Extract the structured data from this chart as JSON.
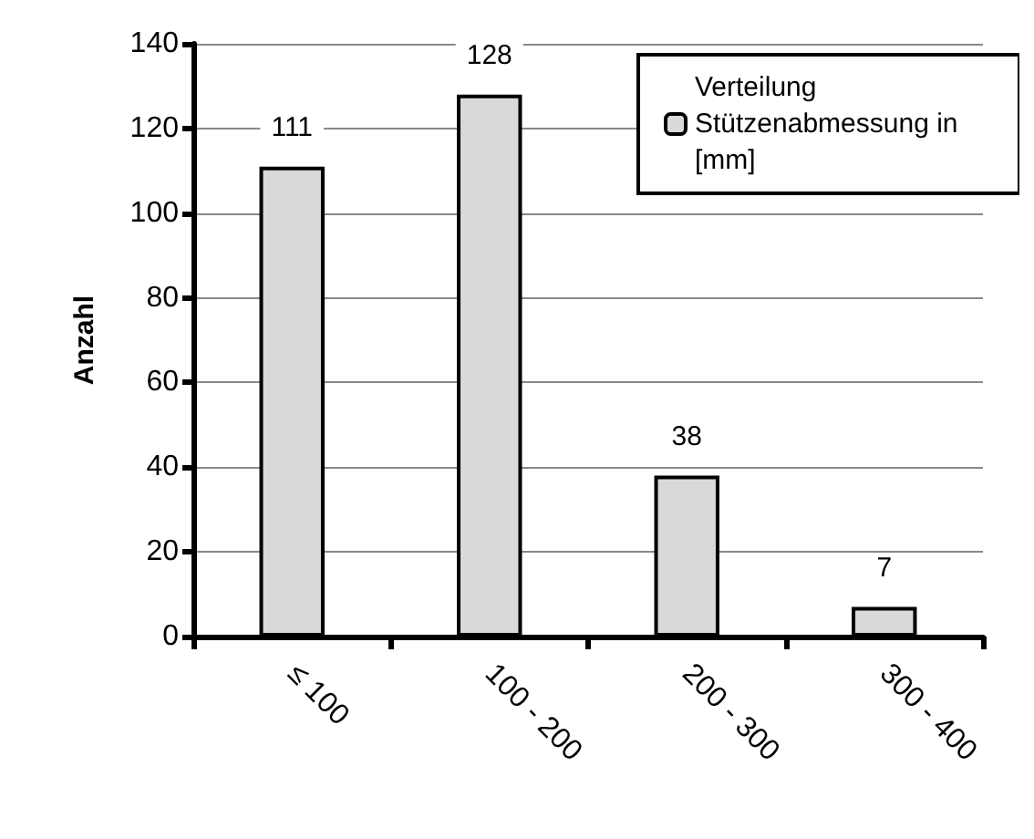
{
  "chart_data": {
    "type": "bar",
    "ylabel": "Anzahl",
    "categories": [
      "≤ 100",
      "100 - 200",
      "200 - 300",
      "300 - 400"
    ],
    "series": [
      {
        "name": "Verteilung Stützenabmessung in [mm]",
        "color": "#d9d9d9",
        "values": [
          111,
          128,
          38,
          7
        ]
      }
    ],
    "ylim": [
      0,
      140
    ],
    "yticks": [
      0,
      20,
      40,
      60,
      80,
      100,
      120,
      140
    ],
    "grid": "y",
    "legend": "top right",
    "data_labels": true
  }
}
